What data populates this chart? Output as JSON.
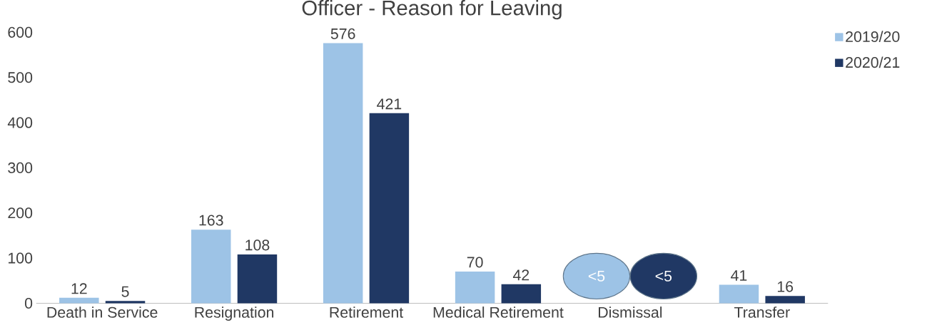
{
  "chart_data": {
    "type": "bar",
    "title": "Officer - Reason for Leaving",
    "categories": [
      "Death in Service",
      "Resignation",
      "Retirement",
      "Medical Retirement",
      "Dismissal",
      "Transfer"
    ],
    "series": [
      {
        "name": "2019/20",
        "color": "#9dc3e6",
        "values": [
          12,
          163,
          576,
          70,
          null,
          41
        ],
        "value_labels": [
          "12",
          "163",
          "576",
          "70",
          "<5",
          "41"
        ]
      },
      {
        "name": "2020/21",
        "color": "#203864",
        "values": [
          5,
          108,
          421,
          42,
          null,
          16
        ],
        "value_labels": [
          "5",
          "108",
          "421",
          "42",
          "<5",
          "16"
        ]
      }
    ],
    "ylim": [
      0,
      600
    ],
    "yticks": [
      0,
      100,
      200,
      300,
      400,
      500,
      600
    ],
    "grid": false,
    "legend": "top right"
  }
}
